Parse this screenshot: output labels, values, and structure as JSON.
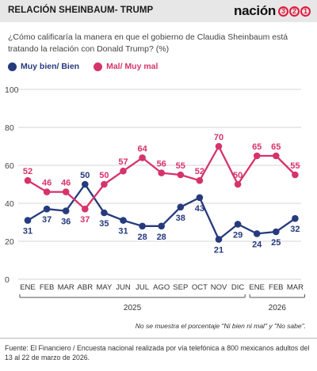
{
  "header": {
    "title": "RELACIÓN SHEINBAUM- TRUMP",
    "logo_word": "nación",
    "logo_digits": [
      "3",
      "2",
      "1"
    ]
  },
  "question": "¿Cómo calificaría la manera en que el gobierno de Claudia Sheinbaum está tratando la relación con Donald Trump? (%)",
  "note": "No se muestra el porcentaje \"Ni bien ni mal\" y \"No sabe\".",
  "source": "Fuente: El Financiero / Encuesta nacional realizada por vía telefónica a 800 mexicanos adultos del 13 al 22 de marzo de 2026.",
  "colors": {
    "good": "#263a7e",
    "bad": "#d6336a",
    "grid": "#d6d6d6"
  },
  "chart_data": {
    "type": "line",
    "categories": [
      "ENE",
      "FEB",
      "MAR",
      "ABR",
      "MAY",
      "JUN",
      "JUL",
      "AGO",
      "SEP",
      "OCT",
      "NOV",
      "DIC",
      "ENE",
      "FEB",
      "MAR"
    ],
    "year_groups": [
      {
        "label": "2025",
        "start": 0,
        "end": 11
      },
      {
        "label": "2026",
        "start": 12,
        "end": 14
      }
    ],
    "series": [
      {
        "name": "Muy bien/ Bien",
        "color": "#263a7e",
        "values": [
          31,
          37,
          36,
          50,
          35,
          31,
          28,
          28,
          38,
          43,
          21,
          29,
          24,
          25,
          32
        ]
      },
      {
        "name": "Mal/ Muy mal",
        "color": "#d6336a",
        "values": [
          52,
          46,
          46,
          37,
          50,
          57,
          64,
          56,
          55,
          52,
          70,
          50,
          65,
          65,
          55
        ]
      }
    ],
    "yticks": [
      0,
      20,
      40,
      60,
      80,
      100
    ],
    "ylim": [
      0,
      100
    ],
    "grid": true,
    "legend": "top-left"
  }
}
